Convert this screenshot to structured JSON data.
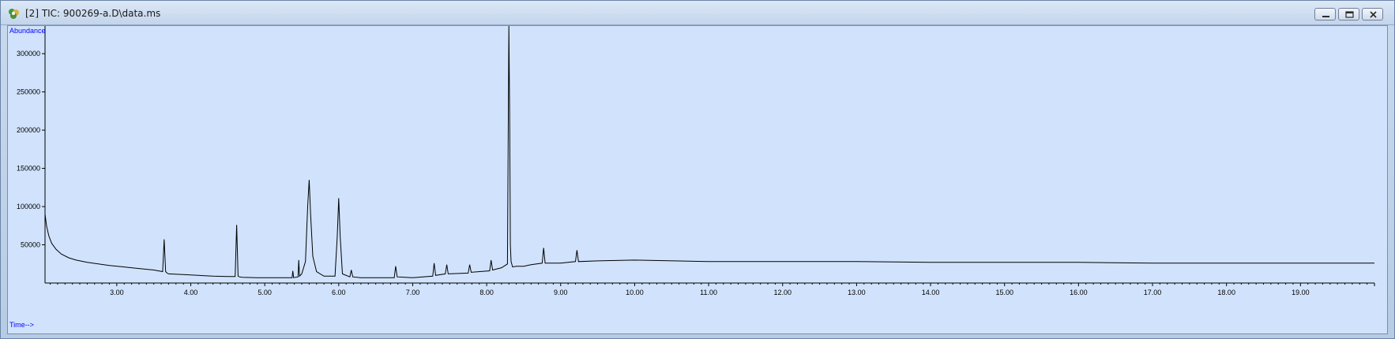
{
  "window": {
    "title": "[2] TIC: 900269-a.D\\data.ms"
  },
  "colors": {
    "plot_background": "#d1e3fc",
    "trace": "#000000",
    "axis_label": "#0000ff"
  },
  "chart_data": {
    "type": "line",
    "title": "",
    "xlabel": "Time-->",
    "ylabel": "Abundance",
    "xlim": [
      2.03,
      20.0
    ],
    "ylim": [
      0,
      330000
    ],
    "x_ticks": [
      3.0,
      4.0,
      5.0,
      6.0,
      7.0,
      8.0,
      9.0,
      10.0,
      11.0,
      12.0,
      13.0,
      14.0,
      15.0,
      16.0,
      17.0,
      18.0,
      19.0
    ],
    "x_tick_labels": [
      "3.00",
      "4.00",
      "5.00",
      "6.00",
      "7.00",
      "8.00",
      "9.00",
      "10.00",
      "11.00",
      "12.00",
      "13.00",
      "14.00",
      "15.00",
      "16.00",
      "17.00",
      "18.00",
      "19.00"
    ],
    "y_ticks": [
      50000,
      100000,
      150000,
      200000,
      250000,
      300000
    ],
    "y_tick_labels": [
      "50000",
      "100000",
      "150000",
      "200000",
      "250000",
      "300000"
    ],
    "grid": false,
    "legend": "none",
    "series": [
      {
        "x": [
          2.03,
          2.05,
          2.08,
          2.12,
          2.18,
          2.25,
          2.35,
          2.45,
          2.6,
          2.75,
          2.9,
          3.1,
          3.3,
          3.5,
          3.62,
          3.64,
          3.66,
          3.68,
          3.7,
          3.9,
          4.1,
          4.3,
          4.5,
          4.6,
          4.62,
          4.64,
          4.66,
          4.7,
          4.9,
          5.1,
          5.3,
          5.37,
          5.38,
          5.39,
          5.45,
          5.46,
          5.47,
          5.5,
          5.55,
          5.58,
          5.6,
          5.62,
          5.65,
          5.7,
          5.8,
          5.95,
          5.98,
          6.0,
          6.02,
          6.05,
          6.15,
          6.17,
          6.19,
          6.3,
          6.5,
          6.75,
          6.77,
          6.79,
          7.0,
          7.27,
          7.29,
          7.31,
          7.44,
          7.46,
          7.48,
          7.75,
          7.77,
          7.79,
          8.04,
          8.06,
          8.08,
          8.2,
          8.28,
          8.29,
          8.3,
          8.31,
          8.32,
          8.33,
          8.35,
          8.4,
          8.5,
          8.6,
          8.75,
          8.77,
          8.79,
          9.0,
          9.2,
          9.22,
          9.24,
          9.5,
          10.0,
          11.0,
          12.0,
          13.0,
          14.0,
          15.0,
          16.0,
          17.0,
          18.0,
          19.0,
          20.0
        ],
        "y": [
          90000,
          75000,
          62000,
          52000,
          44000,
          38000,
          33000,
          30000,
          27000,
          25000,
          23000,
          21000,
          19000,
          17000,
          15000,
          57000,
          15000,
          13000,
          12000,
          11000,
          10000,
          9000,
          8500,
          8500,
          76000,
          9000,
          8000,
          7500,
          7000,
          7000,
          7000,
          7000,
          16000,
          7000,
          8000,
          30000,
          9000,
          12000,
          28000,
          100000,
          135000,
          90000,
          35000,
          15000,
          9000,
          9000,
          60000,
          111000,
          60000,
          12000,
          8000,
          17000,
          8000,
          7000,
          7000,
          7000,
          22000,
          8000,
          7000,
          9000,
          26000,
          10000,
          12000,
          24000,
          12000,
          13000,
          24000,
          14000,
          16000,
          30000,
          17000,
          20000,
          25000,
          180000,
          338000,
          220000,
          50000,
          28000,
          21000,
          22000,
          22000,
          24000,
          26000,
          46000,
          26000,
          26000,
          28000,
          43000,
          28000,
          29000,
          30000,
          28000,
          28000,
          28000,
          27000,
          27000,
          27000,
          26000,
          26000,
          26000,
          26000
        ]
      }
    ]
  }
}
